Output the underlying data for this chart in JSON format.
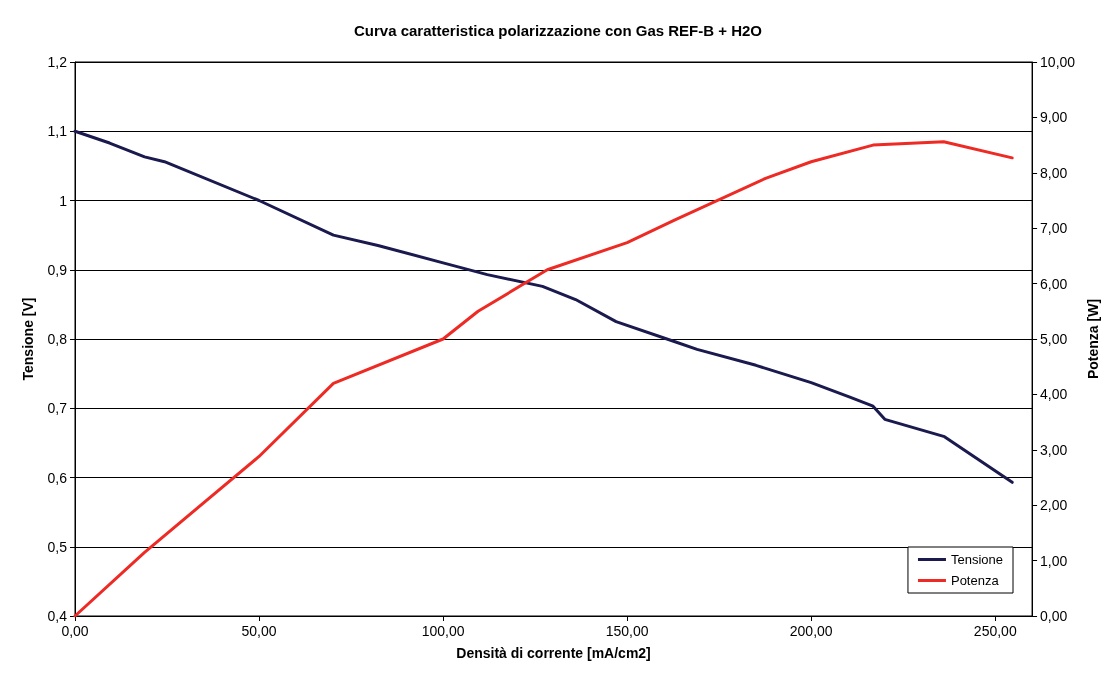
{
  "chart_data": {
    "type": "line",
    "title": "Curva caratteristica polarizzazione con Gas REF-B + H2O",
    "xlabel": "Densità di corrente [mA/cm2]",
    "ylabel": "Tensione [V]",
    "y2label": "Potenza [W]",
    "xlim": [
      0,
      260
    ],
    "xticks": [
      {
        "value": 0,
        "label": "0,00"
      },
      {
        "value": 50,
        "label": "50,00"
      },
      {
        "value": 100,
        "label": "100,00"
      },
      {
        "value": 150,
        "label": "150,00"
      },
      {
        "value": 200,
        "label": "200,00"
      },
      {
        "value": 250,
        "label": "250,00"
      }
    ],
    "ylim": [
      0.4,
      1.2
    ],
    "yticks": [
      {
        "value": 0.4,
        "label": "0,4"
      },
      {
        "value": 0.5,
        "label": "0,5"
      },
      {
        "value": 0.6,
        "label": "0,6"
      },
      {
        "value": 0.7,
        "label": "0,7"
      },
      {
        "value": 0.8,
        "label": "0,8"
      },
      {
        "value": 0.9,
        "label": "0,9"
      },
      1,
      {
        "value": 1.1,
        "label": "1,1"
      },
      {
        "value": 1.2,
        "label": "1,2"
      }
    ],
    "y2lim": [
      0,
      10
    ],
    "y2ticks": [
      {
        "value": 0,
        "label": "0,00"
      },
      {
        "value": 1,
        "label": "1,00"
      },
      {
        "value": 2,
        "label": "2,00"
      },
      {
        "value": 3,
        "label": "3,00"
      },
      {
        "value": 4,
        "label": "4,00"
      },
      {
        "value": 5,
        "label": "5,00"
      },
      {
        "value": 6,
        "label": "6,00"
      },
      {
        "value": 7,
        "label": "7,00"
      },
      {
        "value": 8,
        "label": "8,00"
      },
      {
        "value": 9,
        "label": "9,00"
      },
      {
        "value": 10,
        "label": "10,00"
      }
    ],
    "grid": "y",
    "legend": "bottom right",
    "marker": "none",
    "line_style": "solid",
    "series": [
      {
        "name": "Tensione",
        "color": "#1a1a4e",
        "x": [
          0,
          9.4,
          18.9,
          24.3,
          50,
          70.2,
          82.3,
          100,
          112,
          127,
          136,
          147,
          163,
          169,
          185,
          200,
          210.5,
          216.8,
          220,
          236.2,
          254.6
        ],
        "values": [
          1.1,
          1.083,
          1.063,
          1.056,
          1.0,
          0.95,
          0.935,
          0.91,
          0.893,
          0.876,
          0.857,
          0.825,
          0.796,
          0.785,
          0.762,
          0.737,
          0.716,
          0.703,
          0.684,
          0.659,
          0.593
        ]
      },
      {
        "name": "Potenza",
        "color": "#ee2a24",
        "axis": "y2",
        "x": [
          0,
          18.9,
          50,
          70.2,
          100,
          109.5,
          128.3,
          150,
          163,
          187.6,
          200,
          216.8,
          236,
          254.6
        ],
        "values": [
          0,
          1.15,
          2.88,
          4.2,
          5.0,
          5.5,
          6.25,
          6.74,
          7.15,
          7.9,
          8.2,
          8.5,
          8.56,
          8.27
        ]
      }
    ]
  }
}
